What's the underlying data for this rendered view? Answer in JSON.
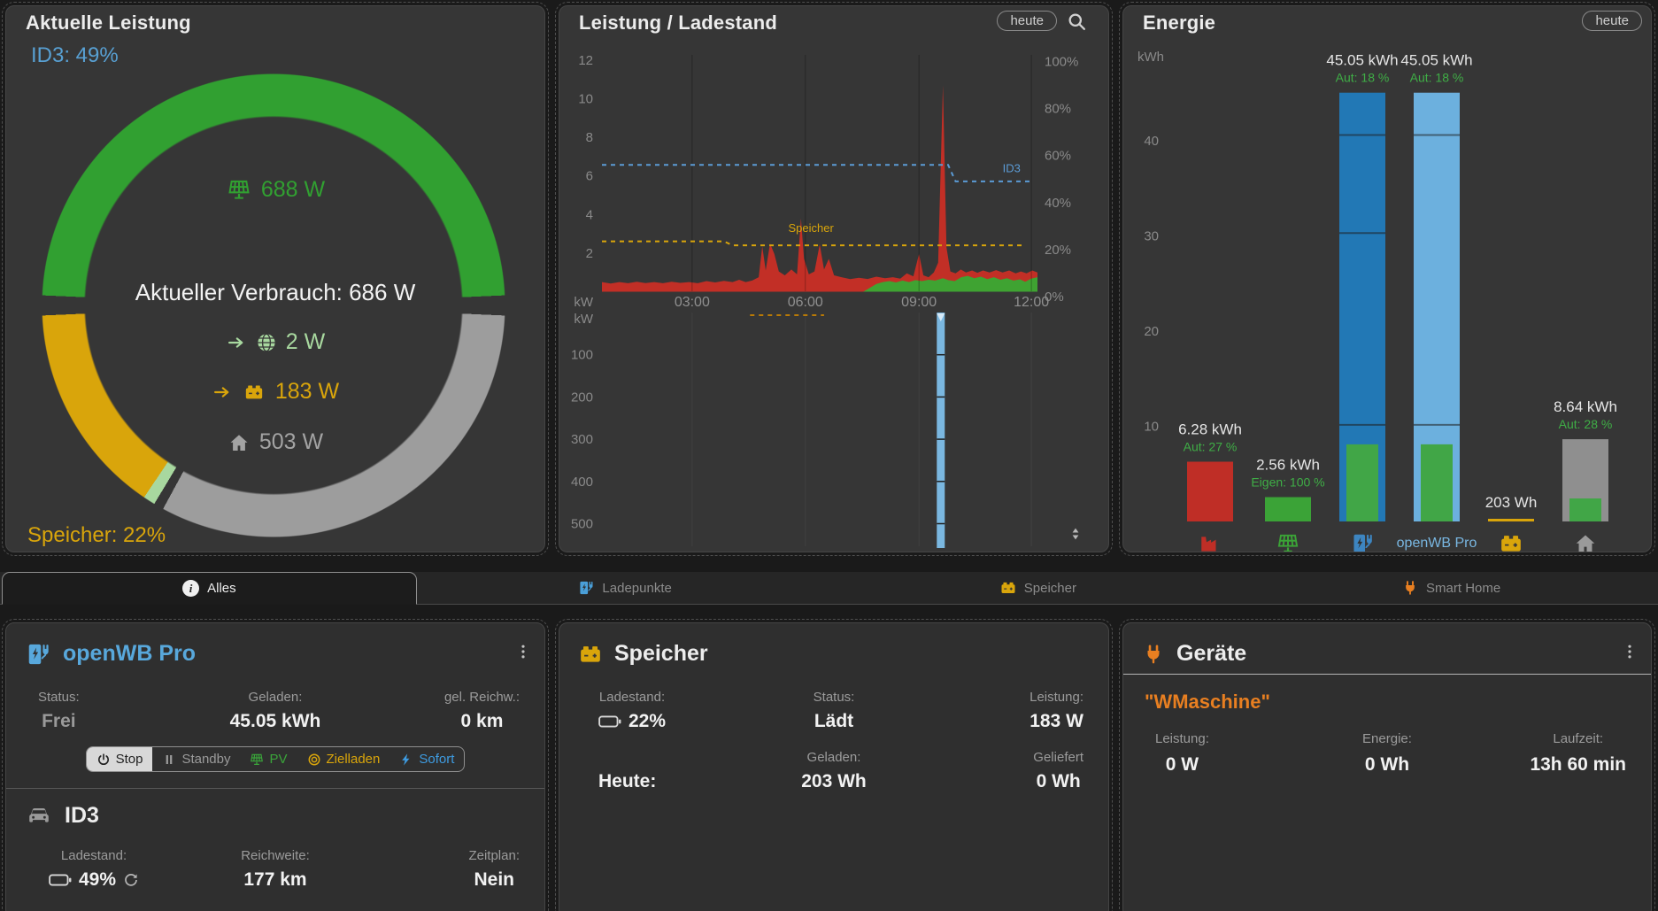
{
  "top_cards": {
    "aktuelle_leistung": {
      "title": "Aktuelle Leistung",
      "id3_soc": "ID3: 49%",
      "speicher_soc": "Speicher: 22%",
      "pv_power": "688 W",
      "consumption": "Aktueller Verbrauch: 686 W",
      "grid_power": "2 W",
      "battery_power": "183 W",
      "house_power": "503 W"
    },
    "leistung_ladestand": {
      "title": "Leistung / Ladestand",
      "range_button": "heute"
    },
    "energie": {
      "title": "Energie",
      "range_button": "heute"
    }
  },
  "tabs": [
    {
      "label": "Alles",
      "icon": "info",
      "active": true
    },
    {
      "label": "Ladepunkte",
      "icon": "charge-station",
      "active": false
    },
    {
      "label": "Speicher",
      "icon": "battery",
      "active": false
    },
    {
      "label": "Smart Home",
      "icon": "plug",
      "active": false
    }
  ],
  "chargepoint_card": {
    "title": "openWB Pro",
    "stats": [
      {
        "label": "Status:",
        "value": "Frei"
      },
      {
        "label": "Geladen:",
        "value": "45.05 kWh"
      },
      {
        "label": "gel. Reichw.:",
        "value": "0 km"
      }
    ],
    "modes": [
      {
        "label": "Stop",
        "icon": "power",
        "active": true,
        "color": "#212121"
      },
      {
        "label": "Standby",
        "icon": "pause",
        "active": false,
        "color": "#9a9a9a"
      },
      {
        "label": "PV",
        "icon": "solar",
        "active": false,
        "color": "#3aa43a"
      },
      {
        "label": "Zielladen",
        "icon": "target",
        "active": false,
        "color": "#d9a50b"
      },
      {
        "label": "Sofort",
        "icon": "bolt",
        "active": false,
        "color": "#3e9be0"
      }
    ],
    "vehicle": {
      "name": "ID3",
      "stats": [
        {
          "label": "Ladestand:",
          "value": "49%"
        },
        {
          "label": "Reichweite:",
          "value": "177 km"
        },
        {
          "label": "Zeitplan:",
          "value": "Nein"
        }
      ]
    }
  },
  "storage_card": {
    "title": "Speicher",
    "row1": [
      {
        "label": "Ladestand:",
        "value": "22%"
      },
      {
        "label": "Status:",
        "value": "Lädt"
      },
      {
        "label": "Leistung:",
        "value": "183 W"
      }
    ],
    "row2": [
      {
        "label": "",
        "value": "Heute:"
      },
      {
        "label": "Geladen:",
        "value": "203 Wh"
      },
      {
        "label": "Geliefert",
        "value": "0 Wh"
      }
    ]
  },
  "devices_card": {
    "title": "Geräte",
    "device_name": "\"WMaschine\"",
    "stats": [
      {
        "label": "Leistung:",
        "value": "0 W"
      },
      {
        "label": "Energie:",
        "value": "0 Wh"
      },
      {
        "label": "Laufzeit:",
        "value": "13h 60 min"
      }
    ]
  },
  "chart_data": [
    {
      "id": "aktuelle_leistung_gauge",
      "type": "donut",
      "segments": [
        {
          "name": "pv",
          "color": "#31a031",
          "from_deg": 0,
          "to_deg": 87.5
        },
        {
          "name": "rest",
          "color": "#9d9d9d",
          "from_deg": 92.5,
          "to_deg": 208.5
        },
        {
          "name": "grid-sliver",
          "color": "#a8d89f",
          "from_deg": 211,
          "to_deg": 214
        },
        {
          "name": "speicher",
          "color": "#d9a50b",
          "from_deg": 214,
          "to_deg": 267.5
        },
        {
          "name": "pv2",
          "color": "#31a031",
          "from_deg": 272.5,
          "to_deg": 360
        }
      ]
    },
    {
      "id": "leistung_ladestand",
      "type": "area",
      "x_ticks": [
        {
          "label": "03:00",
          "f": 0.207
        },
        {
          "label": "06:00",
          "f": 0.467
        },
        {
          "label": "09:00",
          "f": 0.728
        },
        {
          "label": "12:00",
          "f": 0.986
        }
      ],
      "left_axis": {
        "label": "kW",
        "ticks": [
          12,
          10,
          8,
          6,
          4,
          2
        ],
        "max": 13.7
      },
      "right_axis": {
        "ticks": [
          "100%",
          "80%",
          "60%",
          "40%",
          "20%",
          "0%"
        ]
      },
      "series": [
        {
          "name": "Bezug",
          "color": "#c22f26",
          "points": [
            [
              0,
              0.5
            ],
            [
              0.02,
              0.42
            ],
            [
              0.04,
              0.5
            ],
            [
              0.06,
              0.44
            ],
            [
              0.08,
              0.52
            ],
            [
              0.1,
              0.45
            ],
            [
              0.12,
              0.5
            ],
            [
              0.14,
              0.44
            ],
            [
              0.16,
              0.52
            ],
            [
              0.18,
              0.46
            ],
            [
              0.2,
              0.5
            ],
            [
              0.22,
              0.44
            ],
            [
              0.24,
              0.55
            ],
            [
              0.26,
              0.48
            ],
            [
              0.28,
              0.56
            ],
            [
              0.3,
              0.5
            ],
            [
              0.315,
              0.62
            ],
            [
              0.33,
              0.5
            ],
            [
              0.345,
              0.58
            ],
            [
              0.36,
              0.75
            ],
            [
              0.368,
              2.35
            ],
            [
              0.376,
              1.1
            ],
            [
              0.386,
              2.5
            ],
            [
              0.396,
              1.95
            ],
            [
              0.406,
              1.05
            ],
            [
              0.42,
              0.85
            ],
            [
              0.435,
              1.15
            ],
            [
              0.448,
              0.9
            ],
            [
              0.457,
              3.8
            ],
            [
              0.464,
              1.7
            ],
            [
              0.475,
              0.9
            ],
            [
              0.488,
              1.05
            ],
            [
              0.5,
              2.45
            ],
            [
              0.51,
              1.15
            ],
            [
              0.521,
              1.7
            ],
            [
              0.533,
              0.85
            ],
            [
              0.55,
              0.75
            ],
            [
              0.57,
              0.65
            ],
            [
              0.59,
              0.72
            ],
            [
              0.61,
              0.66
            ],
            [
              0.63,
              0.78
            ],
            [
              0.65,
              0.7
            ],
            [
              0.668,
              0.75
            ],
            [
              0.685,
              0.68
            ],
            [
              0.7,
              0.95
            ],
            [
              0.715,
              0.8
            ],
            [
              0.728,
              1.95
            ],
            [
              0.738,
              0.85
            ],
            [
              0.75,
              0.75
            ],
            [
              0.762,
              1.0
            ],
            [
              0.772,
              1.5
            ],
            [
              0.783,
              10.7
            ],
            [
              0.791,
              2.3
            ],
            [
              0.8,
              1.05
            ],
            [
              0.812,
              0.95
            ],
            [
              0.824,
              1.15
            ],
            [
              0.836,
              1.0
            ],
            [
              0.85,
              1.1
            ],
            [
              0.862,
              0.98
            ],
            [
              0.875,
              1.1
            ],
            [
              0.89,
              1.0
            ],
            [
              0.905,
              1.12
            ],
            [
              0.92,
              1.0
            ],
            [
              0.935,
              1.1
            ],
            [
              0.95,
              0.95
            ],
            [
              0.962,
              1.05
            ],
            [
              0.975,
              0.95
            ],
            [
              0.988,
              1.1
            ],
            [
              1,
              1.0
            ]
          ]
        },
        {
          "name": "PV",
          "color": "#3fa332",
          "points": [
            [
              0.6,
              0
            ],
            [
              0.615,
              0.2
            ],
            [
              0.63,
              0.4
            ],
            [
              0.645,
              0.5
            ],
            [
              0.66,
              0.55
            ],
            [
              0.675,
              0.48
            ],
            [
              0.69,
              0.58
            ],
            [
              0.705,
              0.5
            ],
            [
              0.72,
              0.6
            ],
            [
              0.735,
              0.55
            ],
            [
              0.75,
              0.62
            ],
            [
              0.765,
              0.58
            ],
            [
              0.783,
              0.7
            ],
            [
              0.795,
              0.6
            ],
            [
              0.81,
              0.55
            ],
            [
              0.825,
              0.75
            ],
            [
              0.84,
              0.82
            ],
            [
              0.855,
              0.7
            ],
            [
              0.87,
              0.78
            ],
            [
              0.885,
              0.65
            ],
            [
              0.9,
              0.75
            ],
            [
              0.915,
              0.62
            ],
            [
              0.93,
              0.7
            ],
            [
              0.945,
              0.58
            ],
            [
              0.96,
              0.64
            ],
            [
              0.972,
              0.52
            ],
            [
              0.985,
              0.68
            ],
            [
              1,
              0.75
            ]
          ]
        }
      ],
      "soc_lines": [
        {
          "name": "ID3",
          "color": "#5b9bd5",
          "points": [
            [
              0,
              56
            ],
            [
              0.795,
              56
            ],
            [
              0.812,
              49
            ],
            [
              0.985,
              49
            ]
          ],
          "label_f": 0.92,
          "label_pct": 53
        },
        {
          "name": "Speicher",
          "color": "#d9a50b",
          "points": [
            [
              0,
              23.5
            ],
            [
              0.28,
              23.5
            ],
            [
              0.3,
              21.8
            ],
            [
              0.965,
              21.8
            ]
          ],
          "label_f": 0.48,
          "label_pct": 27.5
        }
      ],
      "lower_axis": {
        "label": "kW",
        "ticks": [
          100,
          200,
          300,
          400,
          500
        ]
      },
      "lower_bar": {
        "f": 0.778,
        "color": "#7ab7e0"
      },
      "lower_marks": {
        "f1": 0.34,
        "f2": 0.51,
        "color": "#b97a06"
      }
    },
    {
      "id": "energie",
      "type": "bar",
      "unit": "kWh",
      "y_ticks": [
        40,
        30,
        20,
        10
      ],
      "sub_color": "#3fae46",
      "bars": [
        {
          "name": "Netzbezug",
          "icon": "factory",
          "color": "#bf2e26",
          "value": 6.28,
          "label": "6.28 kWh",
          "sub": "Aut: 27 %"
        },
        {
          "name": "PV",
          "icon": "solar",
          "color": "#3ba337",
          "value": 2.56,
          "label": "2.56 kWh",
          "sub": "Eigen: 100 %"
        },
        {
          "name": "Ladepunkt",
          "icon": "charge-station",
          "icon_color": "#3d85c0",
          "color": "#2278b5",
          "value": 45.05,
          "label": "45.05 kWh",
          "sub": "Aut: 18 %",
          "overlay": {
            "color": "#41a647",
            "value": 8.1
          },
          "dividers": [
            10.15,
            30.3,
            40.6
          ]
        },
        {
          "name": "openWB Pro",
          "caption": "openWB Pro",
          "color": "#6cb0de",
          "value": 45.05,
          "label": "45.05 kWh",
          "sub": "Aut: 18 %",
          "overlay": {
            "color": "#41a647",
            "value": 8.1
          },
          "dividers": [
            10.15,
            40.6
          ]
        },
        {
          "name": "Speicher",
          "icon": "battery",
          "icon_color": "#d9a50b",
          "color": "#d9a50b",
          "value": 0.203,
          "label": "203 Wh"
        },
        {
          "name": "Haus",
          "icon": "house",
          "icon_color": "#9a9a9a",
          "color": "#8f8f8f",
          "value": 8.64,
          "label": "8.64 kWh",
          "sub": "Aut: 28 %",
          "overlay": {
            "color": "#41a647",
            "value": 2.42
          }
        }
      ]
    }
  ]
}
